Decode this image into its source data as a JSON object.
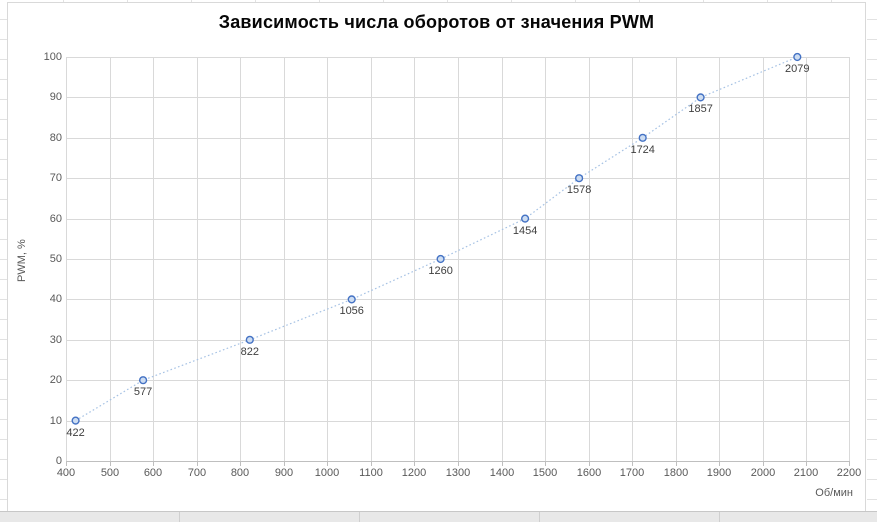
{
  "chart_data": {
    "type": "line",
    "title": "Зависимость числа оборотов от значения PWM",
    "xlabel": "Об/мин",
    "ylabel": "PWM, %",
    "xlim": [
      400,
      2200
    ],
    "ylim": [
      0,
      100
    ],
    "x_ticks": [
      400,
      500,
      600,
      700,
      800,
      900,
      1000,
      1100,
      1200,
      1300,
      1400,
      1500,
      1600,
      1700,
      1800,
      1900,
      2000,
      2100,
      2200
    ],
    "y_ticks": [
      0,
      10,
      20,
      30,
      40,
      50,
      60,
      70,
      80,
      90,
      100
    ],
    "grid": true,
    "legend": "none",
    "series": [
      {
        "name": "PWM",
        "x": [
          422,
          577,
          822,
          1056,
          1260,
          1454,
          1578,
          1724,
          1857,
          2079
        ],
        "y": [
          10,
          20,
          30,
          40,
          50,
          60,
          70,
          80,
          90,
          100
        ],
        "point_labels": [
          "422",
          "577",
          "822",
          "1056",
          "1260",
          "1454",
          "1578",
          "1724",
          "1857",
          "2079"
        ],
        "line_style": "dotted",
        "line_color": "#a6c2e4",
        "marker": "circle",
        "marker_stroke": "#4472c4",
        "marker_fill": "#cdddf2",
        "label_color": "#404040"
      }
    ],
    "colors": {
      "gridline": "#d9d9d9",
      "axis_line": "#bfbfbf",
      "tick_label": "#595959",
      "title": "#060606",
      "plot_background": "#ffffff"
    }
  }
}
